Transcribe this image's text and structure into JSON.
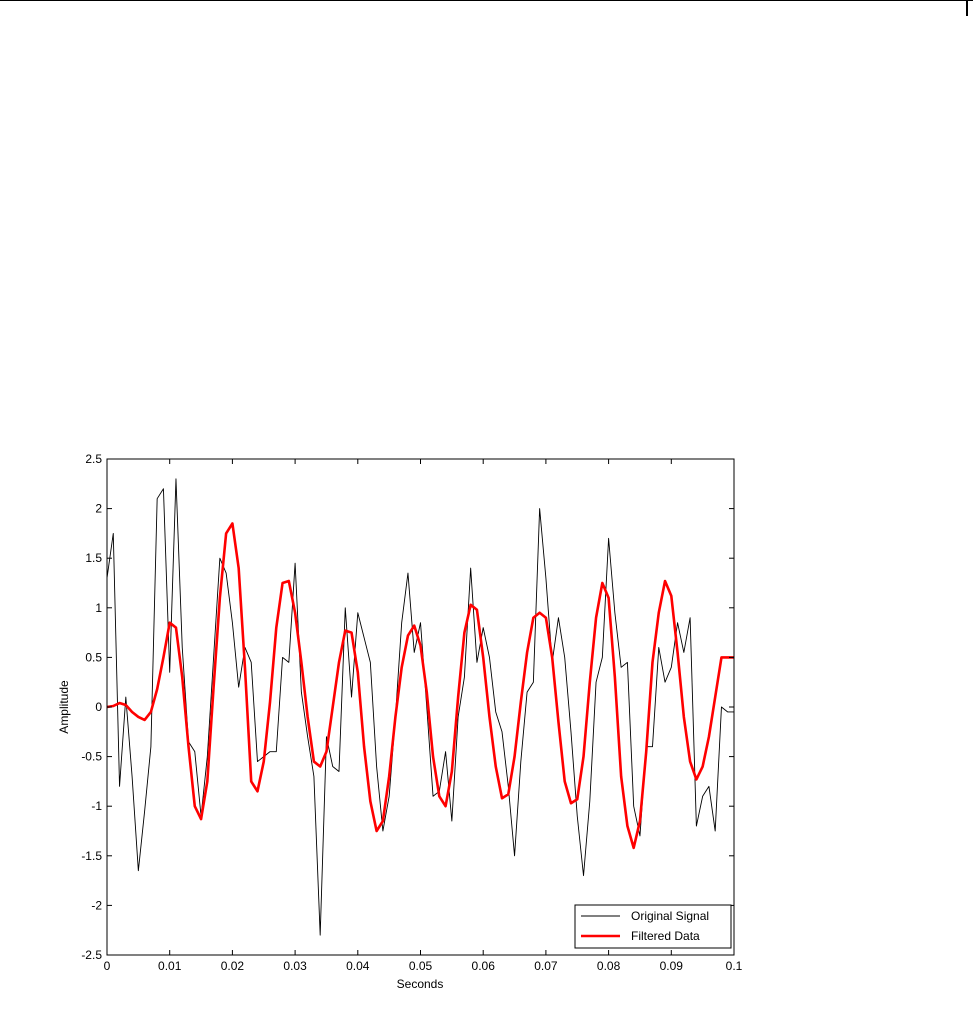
{
  "chart_data": {
    "type": "line",
    "xlabel": "Seconds",
    "ylabel": "Amplitude",
    "xlim": [
      0,
      0.1
    ],
    "ylim": [
      -2.5,
      2.5
    ],
    "xticks": [
      "0",
      "0.01",
      "0.02",
      "0.03",
      "0.04",
      "0.05",
      "0.06",
      "0.07",
      "0.08",
      "0.09",
      "0.1"
    ],
    "yticks": [
      "2.5",
      "2",
      "1.5",
      "1",
      "0.5",
      "0",
      "-0.5",
      "-1",
      "-1.5",
      "-2",
      "-2.5"
    ],
    "grid": false,
    "legend_position": "bottom-right",
    "series": [
      {
        "name": "Original Signal",
        "color": "#000000",
        "x": [
          0,
          0.001,
          0.002,
          0.003,
          0.004,
          0.005,
          0.006,
          0.007,
          0.008,
          0.009,
          0.01,
          0.011,
          0.012,
          0.013,
          0.014,
          0.015,
          0.016,
          0.017,
          0.018,
          0.019,
          0.02,
          0.021,
          0.022,
          0.023,
          0.024,
          0.025,
          0.026,
          0.027,
          0.028,
          0.029,
          0.03,
          0.031,
          0.032,
          0.033,
          0.034,
          0.035,
          0.036,
          0.037,
          0.038,
          0.039,
          0.04,
          0.041,
          0.042,
          0.043,
          0.044,
          0.045,
          0.046,
          0.047,
          0.048,
          0.049,
          0.05,
          0.051,
          0.052,
          0.053,
          0.054,
          0.055,
          0.056,
          0.057,
          0.058,
          0.059,
          0.06,
          0.061,
          0.062,
          0.063,
          0.064,
          0.065,
          0.066,
          0.067,
          0.068,
          0.069,
          0.07,
          0.071,
          0.072,
          0.073,
          0.074,
          0.075,
          0.076,
          0.077,
          0.078,
          0.079,
          0.08,
          0.081,
          0.082,
          0.083,
          0.084,
          0.085,
          0.086,
          0.087,
          0.088,
          0.089,
          0.09,
          0.091,
          0.092,
          0.093,
          0.094,
          0.095,
          0.096,
          0.097,
          0.098,
          0.099,
          0.1
        ],
        "y": [
          1.3,
          1.75,
          -0.8,
          0.1,
          -0.7,
          -1.65,
          -1.05,
          -0.4,
          2.1,
          2.2,
          0.35,
          2.3,
          0.6,
          -0.35,
          -0.45,
          -1.1,
          -0.5,
          0.5,
          1.5,
          1.35,
          0.85,
          0.2,
          0.6,
          0.45,
          -0.55,
          -0.5,
          -0.45,
          -0.45,
          0.5,
          0.45,
          1.45,
          0.15,
          -0.3,
          -0.7,
          -2.3,
          -0.3,
          -0.6,
          -0.65,
          1.0,
          0.1,
          0.95,
          0.7,
          0.45,
          -0.6,
          -1.25,
          -0.9,
          -0.1,
          0.85,
          1.35,
          0.55,
          0.85,
          0.0,
          -0.9,
          -0.85,
          -0.45,
          -1.15,
          -0.1,
          0.3,
          1.4,
          0.45,
          0.8,
          0.5,
          -0.05,
          -0.25,
          -0.8,
          -1.5,
          -0.55,
          0.15,
          0.25,
          2.0,
          1.3,
          0.45,
          0.9,
          0.5,
          -0.25,
          -1.1,
          -1.7,
          -0.95,
          0.25,
          0.5,
          1.7,
          0.95,
          0.4,
          0.45,
          -1.0,
          -1.3,
          -0.4,
          -0.4,
          0.6,
          0.25,
          0.4,
          0.85,
          0.55,
          0.9,
          -1.2,
          -0.9,
          -0.8,
          -1.25,
          0.0,
          -0.05,
          -0.05
        ]
      },
      {
        "name": "Filtered Data",
        "color": "#ff0000",
        "x": [
          0,
          0.001,
          0.002,
          0.003,
          0.004,
          0.005,
          0.006,
          0.007,
          0.008,
          0.009,
          0.01,
          0.011,
          0.012,
          0.013,
          0.014,
          0.015,
          0.016,
          0.017,
          0.018,
          0.019,
          0.02,
          0.021,
          0.022,
          0.023,
          0.024,
          0.025,
          0.026,
          0.027,
          0.028,
          0.029,
          0.03,
          0.031,
          0.032,
          0.033,
          0.034,
          0.035,
          0.036,
          0.037,
          0.038,
          0.039,
          0.04,
          0.041,
          0.042,
          0.043,
          0.044,
          0.045,
          0.046,
          0.047,
          0.048,
          0.049,
          0.05,
          0.051,
          0.052,
          0.053,
          0.054,
          0.055,
          0.056,
          0.057,
          0.058,
          0.059,
          0.06,
          0.061,
          0.062,
          0.063,
          0.064,
          0.065,
          0.066,
          0.067,
          0.068,
          0.069,
          0.07,
          0.071,
          0.072,
          0.073,
          0.074,
          0.075,
          0.076,
          0.077,
          0.078,
          0.079,
          0.08,
          0.081,
          0.082,
          0.083,
          0.084,
          0.085,
          0.086,
          0.087,
          0.088,
          0.089,
          0.09,
          0.091,
          0.092,
          0.093,
          0.094,
          0.095,
          0.096,
          0.097,
          0.098,
          0.099,
          0.1
        ],
        "y": [
          0.0,
          0.01,
          0.04,
          0.02,
          -0.05,
          -0.1,
          -0.13,
          -0.05,
          0.18,
          0.5,
          0.85,
          0.8,
          0.3,
          -0.4,
          -1.0,
          -1.13,
          -0.75,
          0.2,
          1.1,
          1.75,
          1.85,
          1.4,
          0.4,
          -0.75,
          -0.85,
          -0.55,
          0.05,
          0.8,
          1.25,
          1.27,
          0.95,
          0.45,
          -0.1,
          -0.55,
          -0.6,
          -0.45,
          0.0,
          0.45,
          0.77,
          0.75,
          0.35,
          -0.4,
          -0.95,
          -1.25,
          -1.15,
          -0.7,
          -0.1,
          0.4,
          0.72,
          0.82,
          0.62,
          0.15,
          -0.5,
          -0.9,
          -1.0,
          -0.65,
          0.1,
          0.75,
          1.03,
          0.98,
          0.5,
          -0.1,
          -0.6,
          -0.92,
          -0.88,
          -0.5,
          0.05,
          0.55,
          0.9,
          0.95,
          0.9,
          0.5,
          -0.15,
          -0.75,
          -0.97,
          -0.93,
          -0.5,
          0.25,
          0.9,
          1.25,
          1.1,
          0.3,
          -0.7,
          -1.2,
          -1.42,
          -1.15,
          -0.45,
          0.45,
          0.95,
          1.27,
          1.12,
          0.55,
          -0.1,
          -0.55,
          -0.73,
          -0.6,
          -0.3,
          0.1,
          0.5,
          0.5,
          0.5
        ]
      }
    ]
  }
}
